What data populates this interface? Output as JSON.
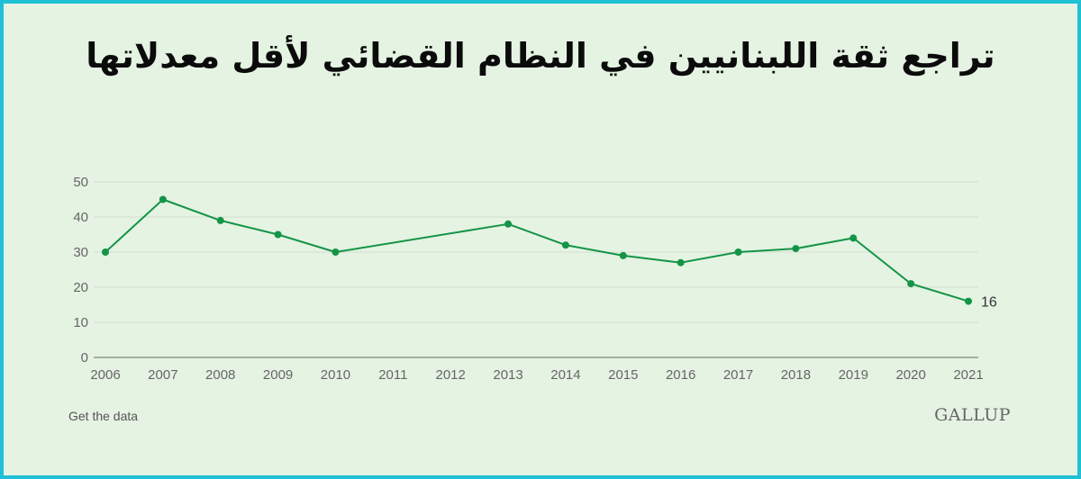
{
  "title": "تراجع ثقة اللبنانيين في النظام القضائي لأقل معدلاتها",
  "footer": {
    "get_data_label": "Get the data",
    "logo_text": "GALLUP"
  },
  "colors": {
    "line": "#149447",
    "background": "#e5f3e3",
    "border": "#1fc0d6",
    "grid": "#d3dcd2"
  },
  "chart_data": {
    "type": "line",
    "title": "تراجع ثقة اللبنانيين في النظام القضائي لأقل معدلاتها",
    "xlabel": "",
    "ylabel": "",
    "x_ticks": [
      "2006",
      "2007",
      "2008",
      "2009",
      "2010",
      "2011",
      "2012",
      "2013",
      "2014",
      "2015",
      "2016",
      "2017",
      "2018",
      "2019",
      "2020",
      "2021"
    ],
    "y_ticks": [
      0,
      10,
      20,
      30,
      40,
      50
    ],
    "xlim": [
      2006,
      2021
    ],
    "ylim": [
      0,
      50
    ],
    "grid": true,
    "legend": "none",
    "series": [
      {
        "x": [
          2006,
          2007,
          2008,
          2009,
          2010,
          2013,
          2014,
          2015,
          2016,
          2017,
          2018,
          2019,
          2020,
          2021
        ],
        "values": [
          30,
          45,
          39,
          35,
          30,
          38,
          32,
          29,
          27,
          30,
          31,
          34,
          21,
          16
        ]
      }
    ],
    "annotations": [
      {
        "x": 2021,
        "y": 16,
        "text": "16"
      }
    ]
  }
}
